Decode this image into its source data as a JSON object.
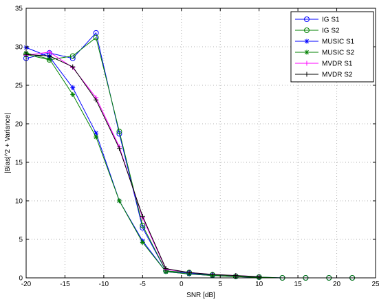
{
  "chart_data": {
    "type": "line",
    "xlabel": "SNR [dB]",
    "ylabel": "|Bias|^2 + Variance|",
    "xlim": [
      -20,
      25
    ],
    "ylim": [
      0,
      35
    ],
    "xticks": [
      -20,
      -15,
      -10,
      -5,
      0,
      5,
      10,
      15,
      20,
      25
    ],
    "yticks": [
      0,
      5,
      10,
      15,
      20,
      25,
      30,
      35
    ],
    "grid": true,
    "legend_position": "top-right",
    "series": [
      {
        "name": "IG S1",
        "color": "#0000ff",
        "marker": "circle",
        "points": [
          [
            -20,
            28.5
          ],
          [
            -17,
            29.2
          ],
          [
            -14,
            28.5
          ],
          [
            -11,
            31.8
          ],
          [
            -8,
            18.7
          ],
          [
            -5,
            6.5
          ],
          [
            -2,
            0.9
          ],
          [
            1,
            0.6
          ],
          [
            4,
            0.35
          ],
          [
            7,
            0.2
          ],
          [
            10,
            0.1
          ],
          [
            13,
            0
          ],
          [
            16,
            0
          ],
          [
            19,
            0
          ],
          [
            22,
            0
          ]
        ]
      },
      {
        "name": "IG S2",
        "color": "#008000",
        "marker": "circle",
        "points": [
          [
            -20,
            29.0
          ],
          [
            -17,
            28.3
          ],
          [
            -14,
            28.8
          ],
          [
            -11,
            31.2
          ],
          [
            -8,
            19.0
          ],
          [
            -5,
            6.8
          ],
          [
            -2,
            0.9
          ],
          [
            1,
            0.7
          ],
          [
            4,
            0.4
          ],
          [
            7,
            0.2
          ],
          [
            10,
            0.1
          ],
          [
            13,
            0
          ],
          [
            16,
            0
          ],
          [
            19,
            0
          ],
          [
            22,
            0
          ]
        ]
      },
      {
        "name": "MUSIC S1",
        "color": "#0000ff",
        "marker": "asterisk",
        "points": [
          [
            -20,
            29.9
          ],
          [
            -17,
            28.7
          ],
          [
            -14,
            24.7
          ],
          [
            -11,
            18.8
          ],
          [
            -8,
            10.0
          ],
          [
            -5,
            4.8
          ],
          [
            -2,
            0.8
          ],
          [
            1,
            0.5
          ],
          [
            4,
            0.3
          ],
          [
            7,
            0.15
          ],
          [
            10,
            0.05
          ]
        ]
      },
      {
        "name": "MUSIC S2",
        "color": "#008000",
        "marker": "asterisk",
        "points": [
          [
            -20,
            29.2
          ],
          [
            -17,
            28.4
          ],
          [
            -14,
            23.8
          ],
          [
            -11,
            18.3
          ],
          [
            -8,
            10.0
          ],
          [
            -5,
            4.6
          ],
          [
            -2,
            0.8
          ],
          [
            1,
            0.5
          ],
          [
            4,
            0.3
          ],
          [
            7,
            0.15
          ],
          [
            10,
            0.05
          ]
        ]
      },
      {
        "name": "MVDR S1",
        "color": "#ff00ff",
        "marker": "plus",
        "points": [
          [
            -20,
            28.9
          ],
          [
            -17,
            29.3
          ],
          [
            -14,
            27.3
          ],
          [
            -11,
            23.4
          ],
          [
            -8,
            17.0
          ],
          [
            -5,
            7.8
          ],
          [
            -2,
            1.1
          ],
          [
            1,
            0.7
          ],
          [
            4,
            0.45
          ],
          [
            7,
            0.3
          ],
          [
            10,
            0.15
          ]
        ]
      },
      {
        "name": "MVDR S2",
        "color": "#000000",
        "marker": "plus",
        "points": [
          [
            -20,
            29.0
          ],
          [
            -17,
            28.8
          ],
          [
            -14,
            27.4
          ],
          [
            -11,
            23.1
          ],
          [
            -8,
            16.8
          ],
          [
            -5,
            8.0
          ],
          [
            -2,
            1.2
          ],
          [
            1,
            0.7
          ],
          [
            4,
            0.45
          ],
          [
            7,
            0.3
          ],
          [
            10,
            0.15
          ]
        ]
      }
    ]
  }
}
